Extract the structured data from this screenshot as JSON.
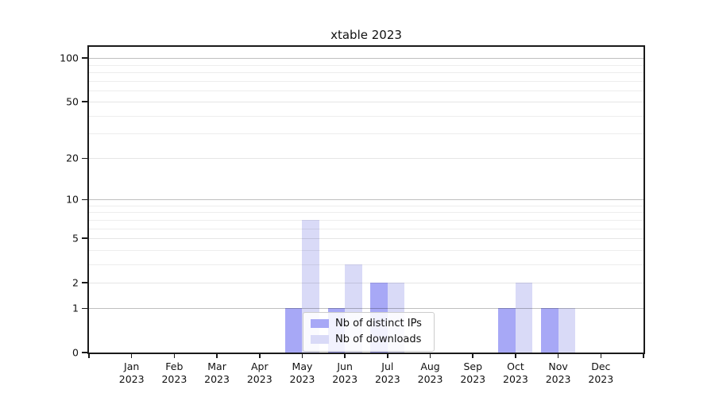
{
  "title": "xtable 2023",
  "legend": {
    "items": [
      {
        "label": "Nb of distinct IPs",
        "color": "#a7a8f6"
      },
      {
        "label": "Nb of downloads",
        "color": "#d9daf7"
      }
    ]
  },
  "chart_data": {
    "type": "bar",
    "title": "xtable 2023",
    "categories": [
      "Jan",
      "Feb",
      "Mar",
      "Apr",
      "May",
      "Jun",
      "Jul",
      "Aug",
      "Sep",
      "Oct",
      "Nov",
      "Dec"
    ],
    "category_year": "2023",
    "series": [
      {
        "name": "Nb of distinct IPs",
        "color": "#a7a8f6",
        "values": [
          0,
          0,
          0,
          0,
          1,
          1,
          2,
          0,
          0,
          1,
          1,
          0
        ]
      },
      {
        "name": "Nb of downloads",
        "color": "#d9daf7",
        "values": [
          0,
          0,
          0,
          0,
          7,
          3,
          2,
          0,
          0,
          2,
          1,
          0
        ]
      }
    ],
    "xlabel": "",
    "ylabel": "",
    "yscale": "log10(1+y)",
    "yticks": [
      0,
      1,
      2,
      5,
      10,
      20,
      50,
      100
    ],
    "ytick_labels": [
      "0",
      "1",
      "2",
      "5",
      "10",
      "20",
      "50",
      "100"
    ],
    "minor_gridlines": [
      3,
      4,
      6,
      7,
      8,
      9,
      30,
      40,
      60,
      70,
      80,
      90
    ],
    "major_gridlines": [
      1,
      10,
      100
    ],
    "ylim": [
      0,
      119
    ],
    "grid": true,
    "legend_position": "lower center"
  },
  "colors": {
    "spine": "#1a1a1a",
    "major_grid": "rgba(0,0,0,0.25)",
    "labeled_minor_grid": "rgba(0,0,0,0.10)",
    "minor_grid": "rgba(0,0,0,0.07)"
  }
}
